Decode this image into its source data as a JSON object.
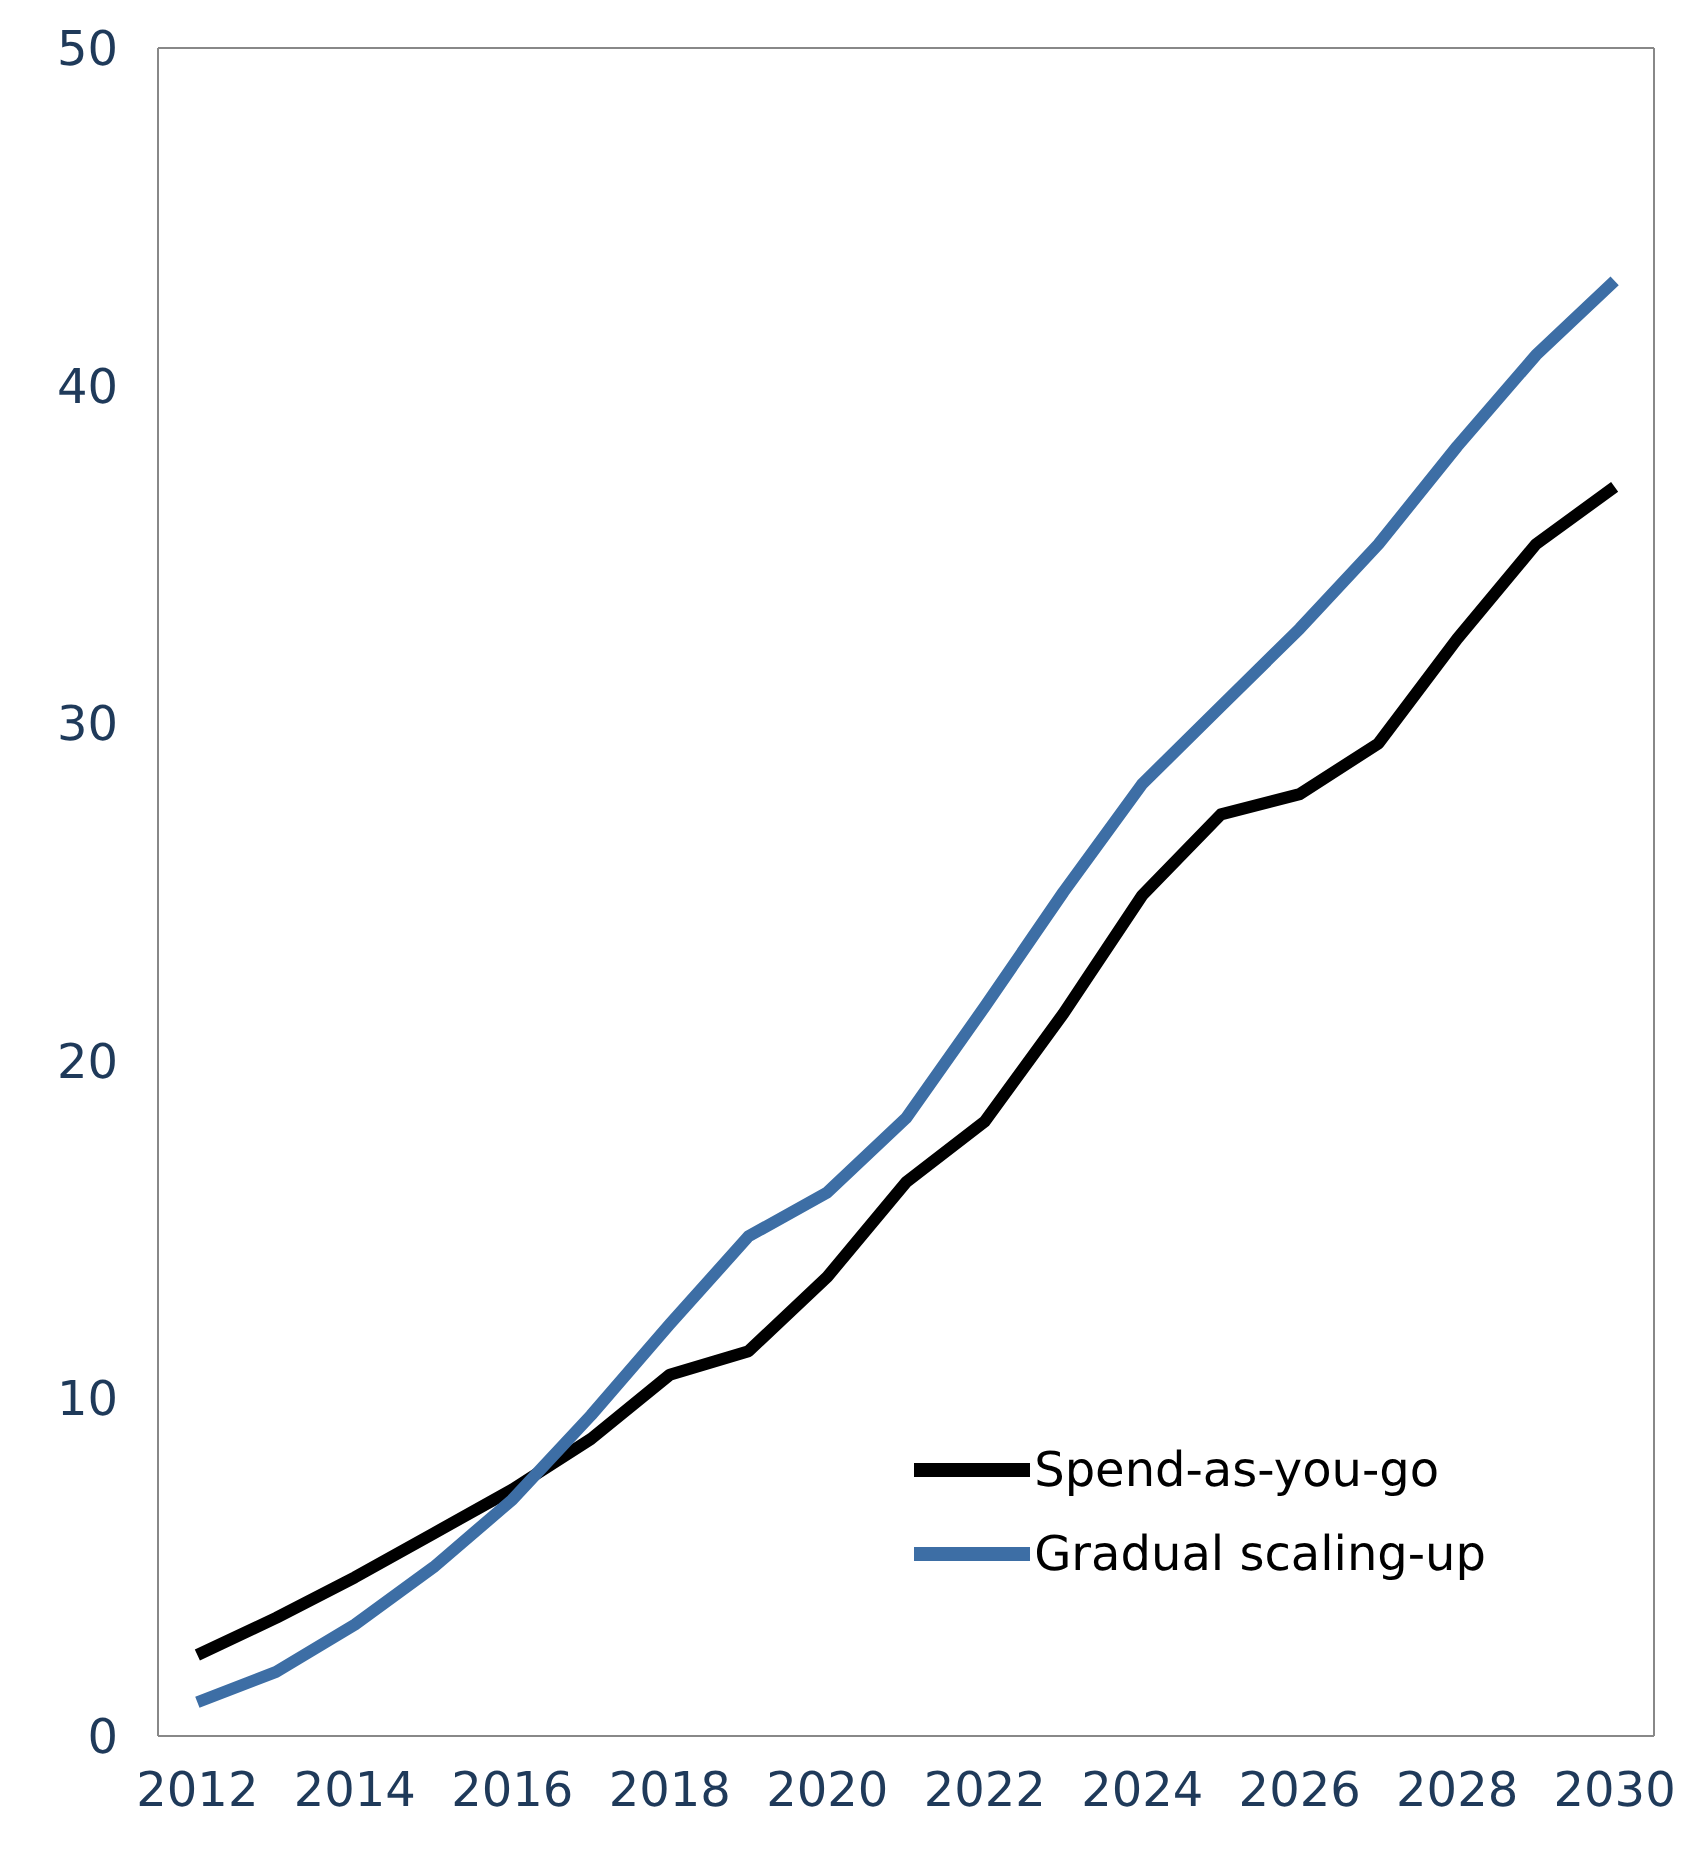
{
  "chart_data": {
    "type": "line",
    "x": [
      2012,
      2013,
      2014,
      2015,
      2016,
      2017,
      2018,
      2019,
      2020,
      2021,
      2022,
      2023,
      2024,
      2025,
      2026,
      2027,
      2028,
      2029,
      2030
    ],
    "series": [
      {
        "name": "Spend-as-you-go",
        "color": "#000000",
        "values": [
          2.4,
          3.5,
          4.7,
          6.0,
          7.3,
          8.8,
          10.7,
          11.4,
          13.6,
          16.4,
          18.2,
          21.4,
          24.9,
          27.3,
          27.9,
          29.4,
          32.5,
          35.3,
          37.0
        ]
      },
      {
        "name": "Gradual scaling-up",
        "color": "#3d6ea5",
        "values": [
          1.0,
          1.9,
          3.3,
          5.0,
          7.0,
          9.5,
          12.2,
          14.8,
          16.1,
          18.3,
          21.6,
          25.0,
          28.2,
          30.5,
          32.8,
          35.3,
          38.2,
          40.9,
          43.1
        ]
      }
    ],
    "xlim": [
      2011.5,
      2030.5
    ],
    "xticks": [
      2012,
      2014,
      2016,
      2018,
      2020,
      2022,
      2024,
      2026,
      2028,
      2030
    ],
    "ylim": [
      0,
      50
    ],
    "yticks": [
      0,
      10,
      20,
      30,
      40,
      50
    ],
    "grid": false,
    "legend": "bottom right",
    "marker": "none",
    "line_style": "solid"
  }
}
